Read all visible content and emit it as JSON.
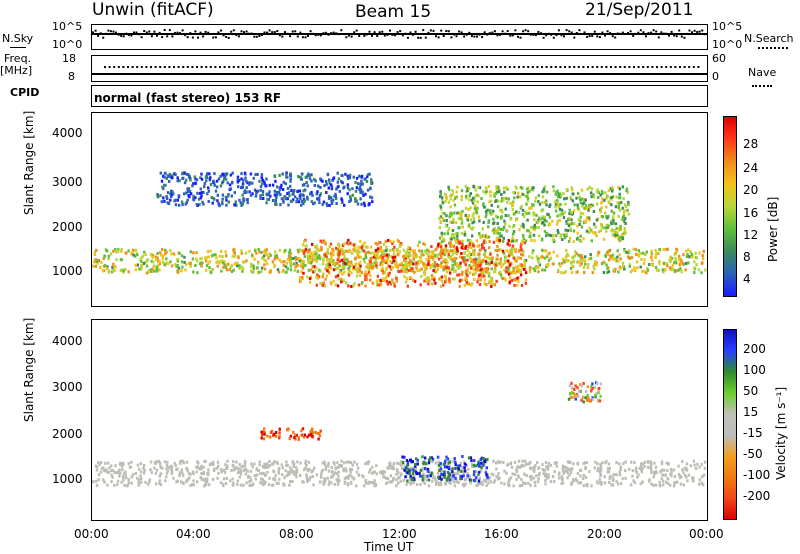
{
  "header": {
    "station": "Unwin (fitACF)",
    "beam": "Beam 15",
    "date": "21/Sep/2011"
  },
  "sky_panel": {
    "left_label": "N.Sky",
    "left_ticks": [
      "10^5",
      "10^0"
    ],
    "right_ticks": [
      "10^5",
      "10^0"
    ],
    "right_label": "N.Search"
  },
  "freq_panel": {
    "left_label_1": "Freq.",
    "left_label_2": "[MHz]",
    "left_ticks": [
      "18",
      "8"
    ],
    "right_ticks": [
      "60",
      "0"
    ],
    "right_label": "Nave"
  },
  "cpid_panel": {
    "label": "CPID",
    "mode": "normal (fast stereo) 153 RF"
  },
  "colors": {
    "power_scale": [
      "#1a1aff",
      "#2a62b8",
      "#3b8a5a",
      "#5fbf3a",
      "#b8d63a",
      "#f2c21a",
      "#f28c1a",
      "#ff3a1a",
      "#e00000"
    ],
    "velocity_scale": [
      "#1010c8",
      "#2a40ff",
      "#2e8c2e",
      "#6ccf30",
      "#c0c0b8",
      "#bdbdbd",
      "#f0a020",
      "#f27a10",
      "#f04818",
      "#e00000"
    ],
    "ground_scatter": "#bdbdb5"
  },
  "chart_data": [
    {
      "type": "heatmap",
      "name": "power",
      "ylabel": "Slant Range [km]",
      "ylim": [
        200,
        4500
      ],
      "y_ticks": [
        "4000",
        "3000",
        "2000",
        "1000"
      ],
      "xlim": [
        "00:00",
        "24:00"
      ],
      "colorbar": {
        "label": "Power [dB]",
        "range": [
          0,
          32
        ],
        "ticks": [
          "28",
          "24",
          "20",
          "16",
          "12",
          "8",
          "4"
        ]
      },
      "features": [
        {
          "range_km": [
            900,
            1500
          ],
          "time_ut": [
            "00:00",
            "24:00"
          ],
          "power_db": [
            10,
            24
          ]
        },
        {
          "range_km": [
            600,
            1700
          ],
          "time_ut": [
            "08:00",
            "17:00"
          ],
          "power_db": [
            14,
            30
          ]
        },
        {
          "range_km": [
            1600,
            2900
          ],
          "time_ut": [
            "13:30",
            "21:00"
          ],
          "power_db": [
            8,
            20
          ]
        },
        {
          "range_km": [
            2400,
            3200
          ],
          "time_ut": [
            "02:30",
            "11:00"
          ],
          "power_db": [
            2,
            8
          ]
        }
      ]
    },
    {
      "type": "heatmap",
      "name": "velocity",
      "ylabel": "Slant Range [km]",
      "xlabel": "Time UT",
      "ylim": [
        200,
        4500
      ],
      "y_ticks": [
        "4000",
        "3000",
        "2000",
        "1000"
      ],
      "x_ticks": [
        "00:00",
        "04:00",
        "08:00",
        "12:00",
        "16:00",
        "20:00",
        "00:00"
      ],
      "colorbar": {
        "label": "Velocity [m s⁻¹]",
        "range": [
          -250,
          250
        ],
        "ticks": [
          "200",
          "100",
          "50",
          "15",
          "-15",
          "-50",
          "-100",
          "-200"
        ]
      },
      "features": [
        {
          "range_km": [
            900,
            1500
          ],
          "time_ut": [
            "00:00",
            "24:00"
          ],
          "velocity_ms": [
            -15,
            15
          ]
        },
        {
          "range_km": [
            1900,
            2200
          ],
          "time_ut": [
            "06:30",
            "09:00"
          ],
          "velocity_ms": [
            -250,
            -100
          ]
        },
        {
          "range_km": [
            1000,
            1600
          ],
          "time_ut": [
            "12:00",
            "15:30"
          ],
          "velocity_ms": [
            100,
            250
          ]
        },
        {
          "range_km": [
            2700,
            3200
          ],
          "time_ut": [
            "18:30",
            "20:00"
          ],
          "velocity_ms": [
            -200,
            200
          ]
        }
      ]
    }
  ]
}
